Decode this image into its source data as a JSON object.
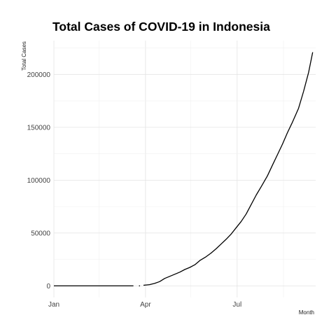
{
  "chart_data": {
    "type": "line",
    "title": "Total Cases of COVID-19 in Indonesia",
    "xlabel": "Month",
    "ylabel": "Total Cases",
    "x_ticks": [
      "Jan",
      "Apr",
      "Jul"
    ],
    "y_ticks": [
      0,
      50000,
      100000,
      150000,
      200000
    ],
    "y_tick_labels": [
      "0",
      "50000",
      "100000",
      "150000",
      "200000"
    ],
    "xlim": [
      "2020-01-01",
      "2020-09-17"
    ],
    "ylim": [
      -11000,
      232000
    ],
    "grid": true,
    "legend": "none",
    "series": [
      {
        "segments": [
          {
            "x": [
              "2020-01-01",
              "2020-02-01",
              "2020-03-01",
              "2020-03-20"
            ],
            "y": [
              0,
              0,
              0,
              0
            ]
          },
          {
            "x": [
              "2020-03-26"
            ],
            "y": [
              0
            ]
          },
          {
            "x": [
              "2020-03-30",
              "2020-04-05",
              "2020-04-10",
              "2020-04-15",
              "2020-04-20",
              "2020-04-25",
              "2020-04-30",
              "2020-05-05",
              "2020-05-10",
              "2020-05-15",
              "2020-05-20",
              "2020-05-25",
              "2020-05-31",
              "2020-06-05",
              "2020-06-10",
              "2020-06-15",
              "2020-06-20",
              "2020-06-25",
              "2020-06-30",
              "2020-07-05",
              "2020-07-10",
              "2020-07-15",
              "2020-07-20",
              "2020-07-25",
              "2020-07-31",
              "2020-08-05",
              "2020-08-10",
              "2020-08-15",
              "2020-08-20",
              "2020-08-25",
              "2020-08-31",
              "2020-09-05",
              "2020-09-10",
              "2020-09-14"
            ],
            "y": [
              600,
              1200,
              2300,
              4000,
              7000,
              9000,
              11000,
              13000,
              15500,
              17500,
              20000,
              24000,
              27500,
              31000,
              35000,
              39500,
              44000,
              49000,
              55000,
              61000,
              68000,
              77000,
              86000,
              94000,
              104000,
              114000,
              124000,
              134000,
              145000,
              155000,
              168000,
              184000,
              202000,
              221000
            ]
          }
        ]
      }
    ]
  }
}
